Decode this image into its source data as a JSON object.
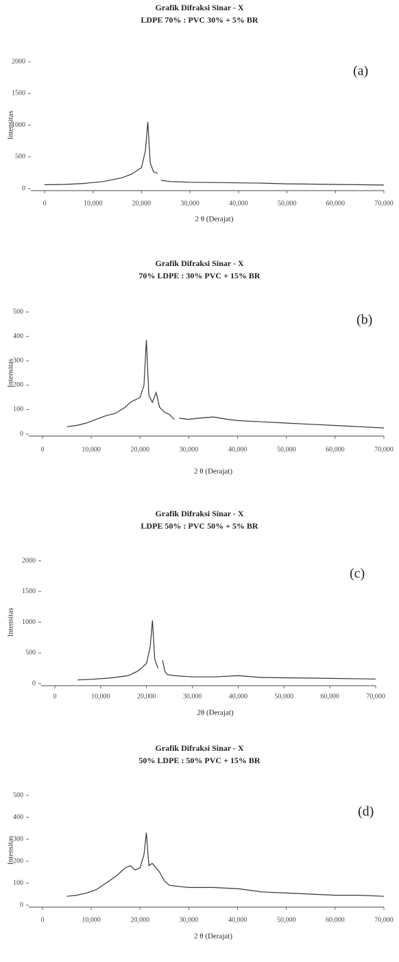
{
  "chart_data": [
    {
      "type": "line",
      "title": "Grafik Difraksi Sinar - X",
      "subtitle": "LDPE 70% : PVC 30% + 5% BR",
      "panel_label": "(a)",
      "x_label": "2 θ (Derajat)",
      "y_label": "Intensitas",
      "xlim": [
        0,
        70
      ],
      "ylim": [
        0,
        2000
      ],
      "xticks": [
        0,
        {
          "value": 10,
          "label": "10,000"
        },
        {
          "value": 20,
          "label": "20,000"
        },
        {
          "value": 30,
          "label": "30,000"
        },
        {
          "value": 40,
          "label": "40,000"
        },
        {
          "value": 50,
          "label": "50,000"
        },
        {
          "value": 60,
          "label": "60,000"
        },
        {
          "value": 70,
          "label": "70,000"
        }
      ],
      "yticks": [
        0,
        500,
        1000,
        1500,
        2000
      ],
      "x": [
        0,
        4,
        8,
        12,
        16,
        18,
        19,
        20,
        20.8,
        21.3,
        21.8,
        22.5,
        23.3,
        23.6,
        24,
        26,
        30,
        35,
        40,
        45,
        50,
        55,
        60,
        65,
        70
      ],
      "series": [
        {
          "color": "#333333",
          "values": [
            60,
            65,
            80,
            110,
            170,
            230,
            280,
            330,
            600,
            1050,
            400,
            260,
            240,
            null,
            130,
            110,
            100,
            95,
            90,
            85,
            75,
            70,
            65,
            60,
            55
          ]
        }
      ]
    },
    {
      "type": "line",
      "title": "Grafik Difraksi Sinar - X",
      "subtitle": "70% LDPE : 30% PVC + 15% BR",
      "panel_label": "(b)",
      "x_label": "2 θ (Derajat)",
      "y_label": "Intensitas",
      "xlim": [
        0,
        70
      ],
      "ylim": [
        0,
        500
      ],
      "xticks": [
        0,
        {
          "value": 10,
          "label": "10,000"
        },
        {
          "value": 20,
          "label": "20,000"
        },
        {
          "value": 30,
          "label": "30,000"
        },
        {
          "value": 40,
          "label": "40,000"
        },
        {
          "value": 50,
          "label": "50,000"
        },
        {
          "value": 60,
          "label": "60,000"
        },
        {
          "value": 70,
          "label": "70,000"
        }
      ],
      "yticks": [
        0,
        100,
        200,
        300,
        400,
        500
      ],
      "x": [
        5,
        7,
        9,
        11,
        13,
        15,
        17,
        18,
        19,
        20,
        20.8,
        21.3,
        21.8,
        22.5,
        23.3,
        24,
        25,
        26,
        27,
        27.5,
        28,
        30,
        32,
        35,
        38,
        40,
        45,
        50,
        55,
        60,
        65,
        70
      ],
      "series": [
        {
          "color": "#333333",
          "values": [
            30,
            35,
            45,
            60,
            75,
            85,
            110,
            130,
            140,
            150,
            200,
            385,
            160,
            130,
            170,
            110,
            90,
            80,
            60,
            null,
            65,
            60,
            65,
            70,
            60,
            55,
            50,
            45,
            40,
            35,
            30,
            25
          ]
        }
      ]
    },
    {
      "type": "line",
      "title": "Grafik Difraksi Sinar - X",
      "subtitle": "LDPE 50% : PVC 50% + 5% BR",
      "panel_label": "(c)",
      "x_label": "2θ (Derajat)",
      "y_label": "Intensitas",
      "xlim": [
        0,
        70
      ],
      "ylim": [
        0,
        2000
      ],
      "xticks": [
        0,
        {
          "value": 10,
          "label": "10,000"
        },
        {
          "value": 20,
          "label": "20,000"
        },
        {
          "value": 30,
          "label": "30,000"
        },
        {
          "value": 40,
          "label": "40,000"
        },
        {
          "value": 50,
          "label": "50,000"
        },
        {
          "value": 60,
          "label": "60,000"
        },
        {
          "value": 70,
          "label": "70,000"
        }
      ],
      "yticks": [
        0,
        500,
        1000,
        1500,
        2000
      ],
      "x": [
        5,
        8,
        12,
        16,
        18,
        19,
        20,
        20.8,
        21.3,
        21.8,
        22.5,
        23,
        23.5,
        24,
        24.5,
        26,
        30,
        35,
        40,
        45,
        50,
        55,
        60,
        65,
        70
      ],
      "series": [
        {
          "color": "#333333",
          "values": [
            60,
            70,
            90,
            130,
            200,
            260,
            330,
            600,
            1030,
            400,
            250,
            null,
            380,
            200,
            150,
            130,
            110,
            110,
            130,
            100,
            95,
            90,
            85,
            80,
            75
          ]
        }
      ]
    },
    {
      "type": "line",
      "title": "Grafik Difraksi Sinar - X",
      "subtitle": "50% LDPE : 50% PVC + 15% BR",
      "panel_label": "(d)",
      "x_label": "2 θ (Derajat)",
      "y_label": "Intensitas",
      "xlim": [
        0,
        70
      ],
      "ylim": [
        0,
        500
      ],
      "xticks": [
        0,
        {
          "value": 10,
          "label": "10,000"
        },
        {
          "value": 20,
          "label": "20,000"
        },
        {
          "value": 30,
          "label": "30,000"
        },
        {
          "value": 40,
          "label": "40,000"
        },
        {
          "value": 50,
          "label": "50,000"
        },
        {
          "value": 60,
          "label": "60,000"
        },
        {
          "value": 70,
          "label": "70,000"
        }
      ],
      "yticks": [
        0,
        100,
        200,
        300,
        400,
        500
      ],
      "x": [
        5,
        7,
        9,
        11,
        13,
        15,
        16,
        17,
        18,
        19,
        20,
        20.8,
        21.3,
        21.8,
        22.5,
        23.3,
        24,
        25,
        26,
        28,
        30,
        35,
        40,
        45,
        50,
        55,
        60,
        65,
        70
      ],
      "series": [
        {
          "color": "#333333",
          "values": [
            40,
            45,
            55,
            70,
            100,
            130,
            150,
            170,
            180,
            160,
            170,
            230,
            330,
            180,
            190,
            170,
            150,
            110,
            90,
            85,
            80,
            80,
            75,
            60,
            55,
            50,
            45,
            45,
            40
          ]
        }
      ]
    }
  ]
}
